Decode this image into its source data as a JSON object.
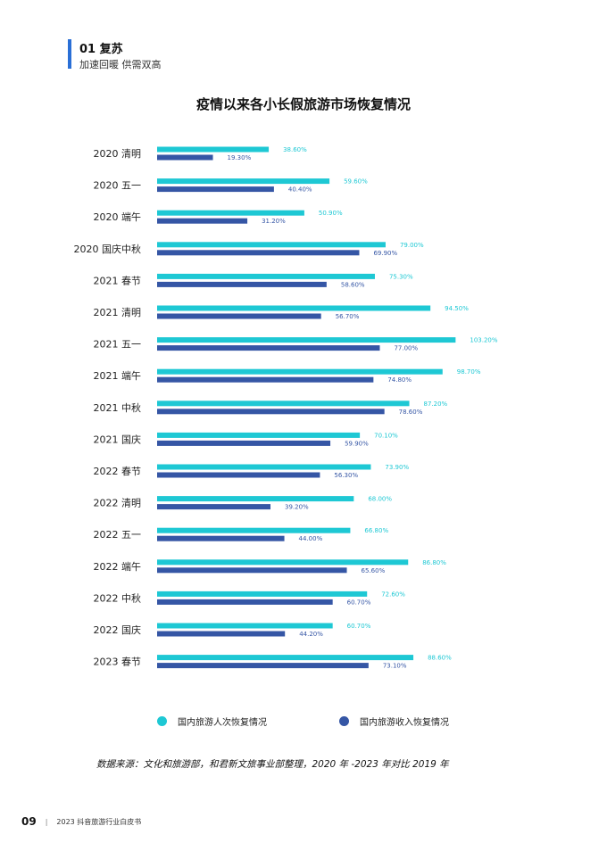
{
  "section": {
    "title": "01 复苏",
    "subtitle": "加速回暖  供需双高"
  },
  "chart_data": {
    "type": "bar",
    "orientation": "horizontal",
    "title": "疫情以来各小长假旅游市场恢复情况",
    "categories": [
      "2020 清明",
      "2020 五一",
      "2020 端午",
      "2020 国庆中秋",
      "2021 春节",
      "2021 清明",
      "2021 五一",
      "2021 端午",
      "2021 中秋",
      "2021 国庆",
      "2022 春节",
      "2022 清明",
      "2022 五一",
      "2022 端午",
      "2022 中秋",
      "2022 国庆",
      "2023 春节"
    ],
    "series": [
      {
        "name": "国内旅游人次恢复情况",
        "color": "#1ec8d4",
        "values": [
          38.6,
          59.6,
          50.9,
          79.0,
          75.3,
          94.5,
          103.2,
          98.7,
          87.2,
          70.1,
          73.9,
          68.0,
          66.8,
          86.8,
          72.6,
          60.7,
          88.6
        ],
        "labels": [
          "38.60%",
          "59.60%",
          "50.90%",
          "79.00%",
          "75.30%",
          "94.50%",
          "103.20%",
          "98.70%",
          "87.20%",
          "70.10%",
          "73.90%",
          "68.00%",
          "66.80%",
          "86.80%",
          "72.60%",
          "60.70%",
          "88.60%"
        ]
      },
      {
        "name": "国内旅游收入恢复情况",
        "color": "#3556a5",
        "values": [
          19.3,
          40.4,
          31.2,
          69.9,
          58.6,
          56.7,
          77.0,
          74.8,
          78.6,
          59.9,
          56.3,
          39.2,
          44.0,
          65.6,
          60.7,
          44.2,
          73.1
        ],
        "labels": [
          "19.30%",
          "40.40%",
          "31.20%",
          "69.90%",
          "58.60%",
          "56.70%",
          "77.00%",
          "74.80%",
          "78.60%",
          "59.90%",
          "56.30%",
          "39.20%",
          "44.00%",
          "65.60%",
          "60.70%",
          "44.20%",
          "73.10%"
        ]
      }
    ],
    "unit": "%",
    "grid": false,
    "legend_position": "bottom"
  },
  "source": "数据来源：文化和旅游部，和君新文旅事业部整理，2020 年 -2023 年对比 2019 年",
  "footer": {
    "page": "09",
    "separator": "|",
    "book_title": "2023 抖音旅游行业白皮书"
  }
}
